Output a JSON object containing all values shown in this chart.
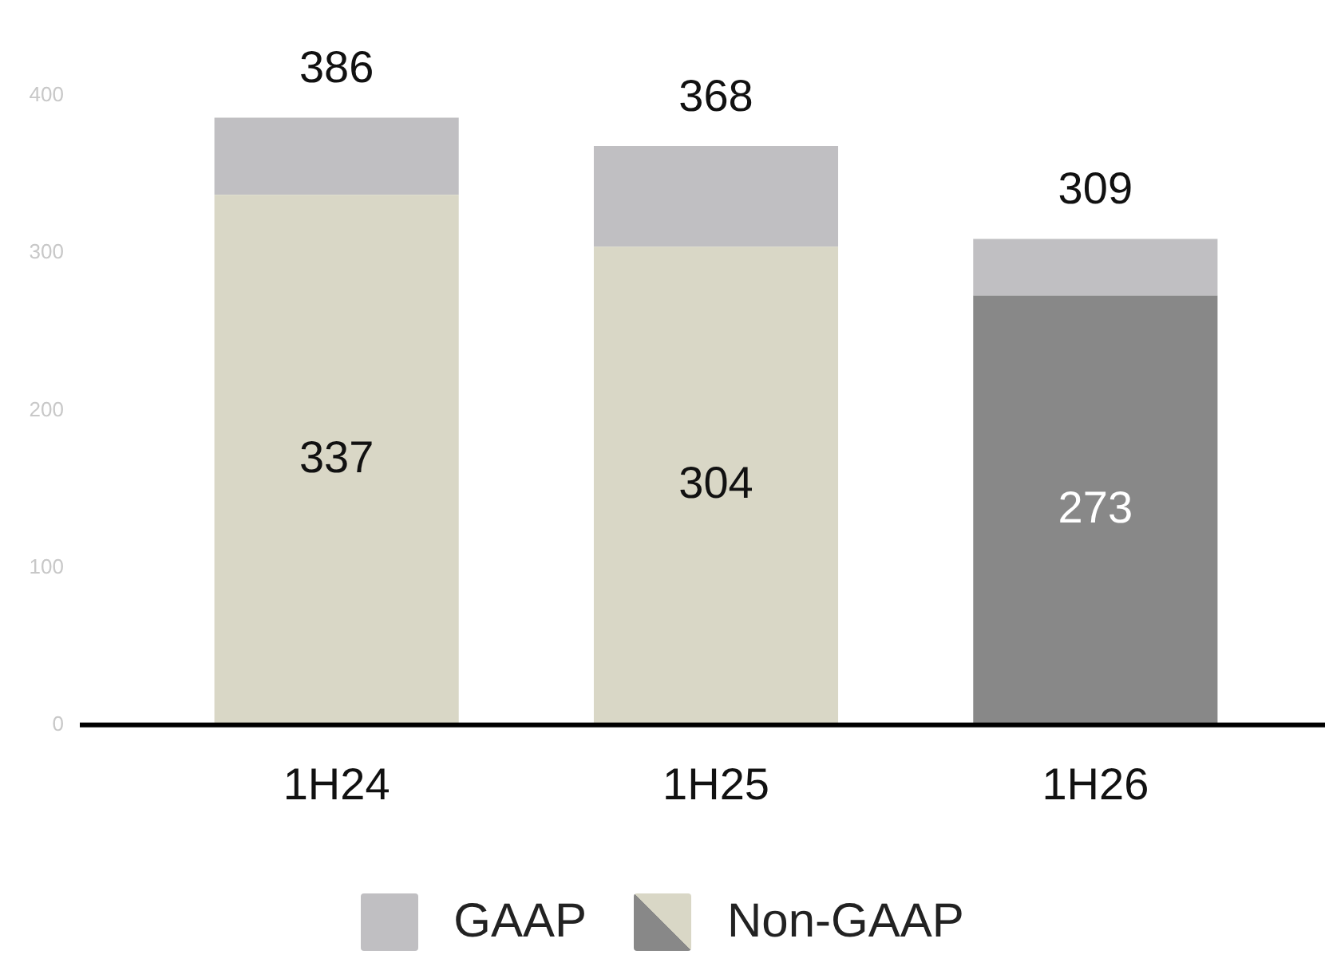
{
  "chart_data": {
    "type": "bar",
    "stacked": true,
    "categories": [
      "1H24",
      "1H25",
      "1H26"
    ],
    "series": [
      {
        "name": "Non-GAAP",
        "colors": [
          "#d9d7c6",
          "#d9d7c6",
          "#888888"
        ],
        "values": [
          337,
          304,
          273
        ],
        "value_labels": [
          "337",
          "304",
          "273"
        ]
      },
      {
        "name": "GAAP",
        "color": "#c0bfc2",
        "values": [
          49,
          64,
          36
        ]
      }
    ],
    "totals": [
      "386",
      "368",
      "309"
    ],
    "ylim": [
      0,
      400
    ],
    "yticks": [
      0,
      100,
      200,
      300,
      400
    ],
    "grid": false,
    "legend": "bottom"
  }
}
